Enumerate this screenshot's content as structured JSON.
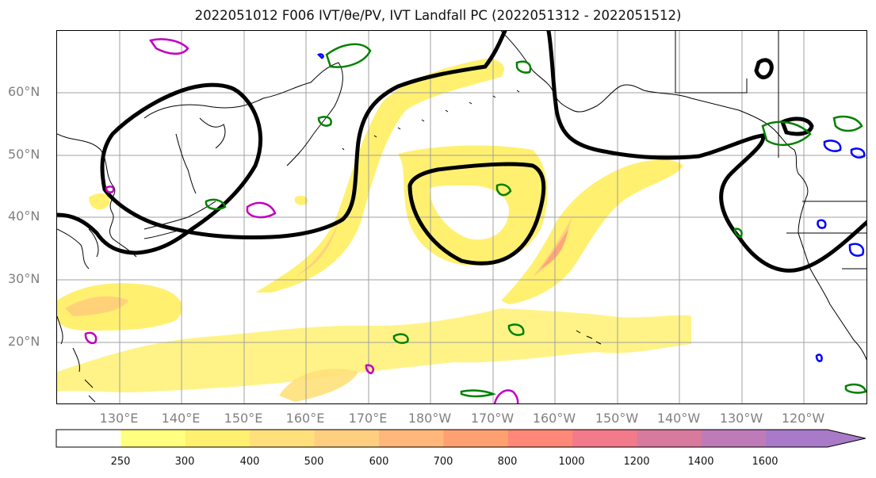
{
  "title": "2022051012 F006 IVT/θe/PV, IVT Landfall PC (2022051312 - 2022051512)",
  "map": {
    "lat_labels": [
      "60°N",
      "50°N",
      "40°N",
      "30°N",
      "20°N"
    ],
    "lon_labels": [
      "130°E",
      "140°E",
      "150°E",
      "160°E",
      "170°E",
      "180°W",
      "170°W",
      "160°W",
      "150°W",
      "140°W",
      "130°W",
      "120°W"
    ],
    "colors": {
      "ivt_contour": "#000000",
      "theta_e_contour": "#008000",
      "pv_positive_contour": "#c000c0",
      "pv_negative_contour": "#0000ff",
      "coastline": "#000000",
      "gridline": "#a0a0a0"
    }
  },
  "colorbar": {
    "ticks": [
      "250",
      "300",
      "400",
      "500",
      "600",
      "700",
      "800",
      "1000",
      "1200",
      "1400",
      "1600"
    ],
    "colors": [
      "#ffffff",
      "#ffff80",
      "#fff070",
      "#ffe07a",
      "#ffcf80",
      "#ffb87a",
      "#ffa070",
      "#ff8878",
      "#f27a8a",
      "#d87a9e",
      "#bf7ab8",
      "#a87ac8"
    ],
    "extend": "max"
  }
}
